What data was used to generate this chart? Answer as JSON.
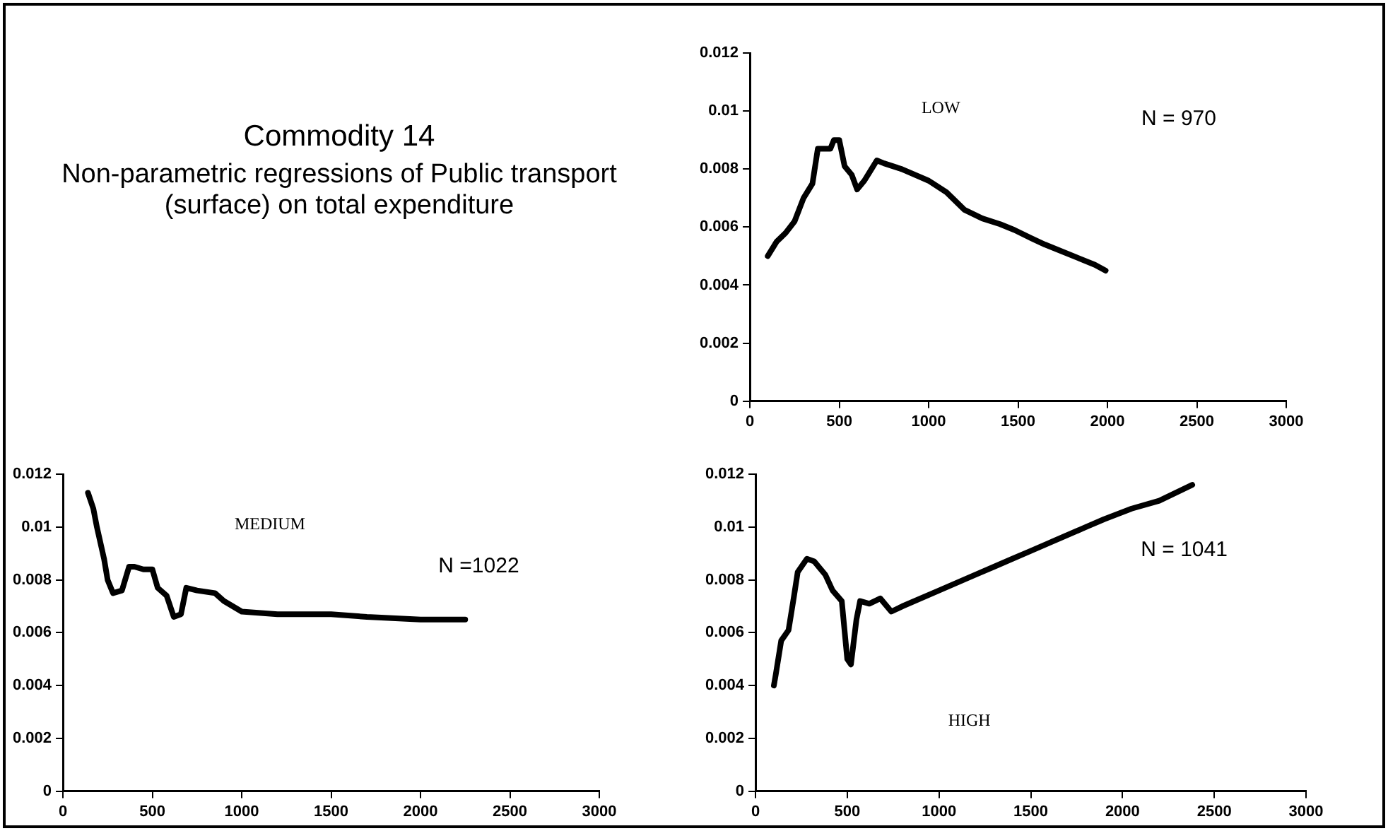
{
  "chart_data": [
    {
      "type": "other",
      "title": "Commodity 14",
      "subtitle": "Non-parametric regressions of Public transport (surface) on total expenditure"
    },
    {
      "type": "line",
      "annotations": [
        "LOW",
        "N = 970"
      ],
      "xlim": [
        0,
        3000
      ],
      "xticks": [
        0,
        500,
        1000,
        1500,
        2000,
        2500,
        3000
      ],
      "ylim": [
        0,
        0.012
      ],
      "yticks": [
        0,
        0.002,
        0.004,
        0.006,
        0.008,
        0.01,
        0.012
      ],
      "legend": false,
      "marker": "none",
      "line_style": "solid",
      "x": [
        100,
        150,
        200,
        250,
        300,
        350,
        380,
        450,
        470,
        500,
        530,
        570,
        600,
        640,
        680,
        710,
        750,
        850,
        1000,
        1100,
        1200,
        1300,
        1400,
        1480,
        1580,
        1650,
        1930,
        1990
      ],
      "series": [
        {
          "color": "#000000",
          "values": [
            0.005,
            0.0055,
            0.0058,
            0.0062,
            0.007,
            0.0075,
            0.0087,
            0.0087,
            0.009,
            0.009,
            0.0081,
            0.0078,
            0.0073,
            0.0076,
            0.008,
            0.0083,
            0.0082,
            0.008,
            0.0076,
            0.0072,
            0.0066,
            0.0063,
            0.0061,
            0.0059,
            0.0056,
            0.0054,
            0.0047,
            0.0045
          ]
        }
      ]
    },
    {
      "type": "line",
      "annotations": [
        "MEDIUM",
        "N =1022"
      ],
      "xlim": [
        0,
        3000
      ],
      "xticks": [
        0,
        500,
        1000,
        1500,
        2000,
        2500,
        3000
      ],
      "ylim": [
        0,
        0.012
      ],
      "yticks": [
        0,
        0.002,
        0.004,
        0.006,
        0.008,
        0.01,
        0.012
      ],
      "legend": false,
      "marker": "none",
      "line_style": "solid",
      "x": [
        140,
        170,
        190,
        210,
        230,
        250,
        280,
        330,
        370,
        400,
        450,
        500,
        530,
        580,
        620,
        660,
        690,
        750,
        850,
        900,
        1000,
        1200,
        1500,
        1700,
        2000,
        2250
      ],
      "series": [
        {
          "color": "#000000",
          "values": [
            0.0113,
            0.0107,
            0.01,
            0.0094,
            0.0088,
            0.008,
            0.0075,
            0.0076,
            0.0085,
            0.0085,
            0.0084,
            0.0084,
            0.0077,
            0.0074,
            0.0066,
            0.0067,
            0.0077,
            0.0076,
            0.0075,
            0.0072,
            0.0068,
            0.0067,
            0.0067,
            0.0066,
            0.0065,
            0.0065
          ]
        }
      ]
    },
    {
      "type": "line",
      "annotations": [
        "HIGH",
        "N = 1041"
      ],
      "xlim": [
        0,
        3000
      ],
      "xticks": [
        0,
        500,
        1000,
        1500,
        2000,
        2500,
        3000
      ],
      "ylim": [
        0,
        0.012
      ],
      "yticks": [
        0,
        0.002,
        0.004,
        0.006,
        0.008,
        0.01,
        0.012
      ],
      "legend": false,
      "marker": "none",
      "line_style": "solid",
      "x": [
        100,
        110,
        140,
        180,
        210,
        230,
        280,
        320,
        380,
        420,
        470,
        500,
        520,
        550,
        570,
        620,
        680,
        740,
        800,
        1000,
        1200,
        1300,
        1400,
        1500,
        1600,
        1800,
        1900,
        2050,
        2200,
        2380
      ],
      "series": [
        {
          "color": "#000000",
          "values": [
            0.004,
            0.0044,
            0.0057,
            0.0061,
            0.0074,
            0.0083,
            0.0088,
            0.0087,
            0.0082,
            0.0076,
            0.0072,
            0.005,
            0.0048,
            0.0065,
            0.0072,
            0.0071,
            0.0073,
            0.0068,
            0.007,
            0.0076,
            0.0082,
            0.0085,
            0.0088,
            0.0091,
            0.0094,
            0.01,
            0.0103,
            0.0107,
            0.011,
            0.0116
          ]
        }
      ]
    }
  ]
}
